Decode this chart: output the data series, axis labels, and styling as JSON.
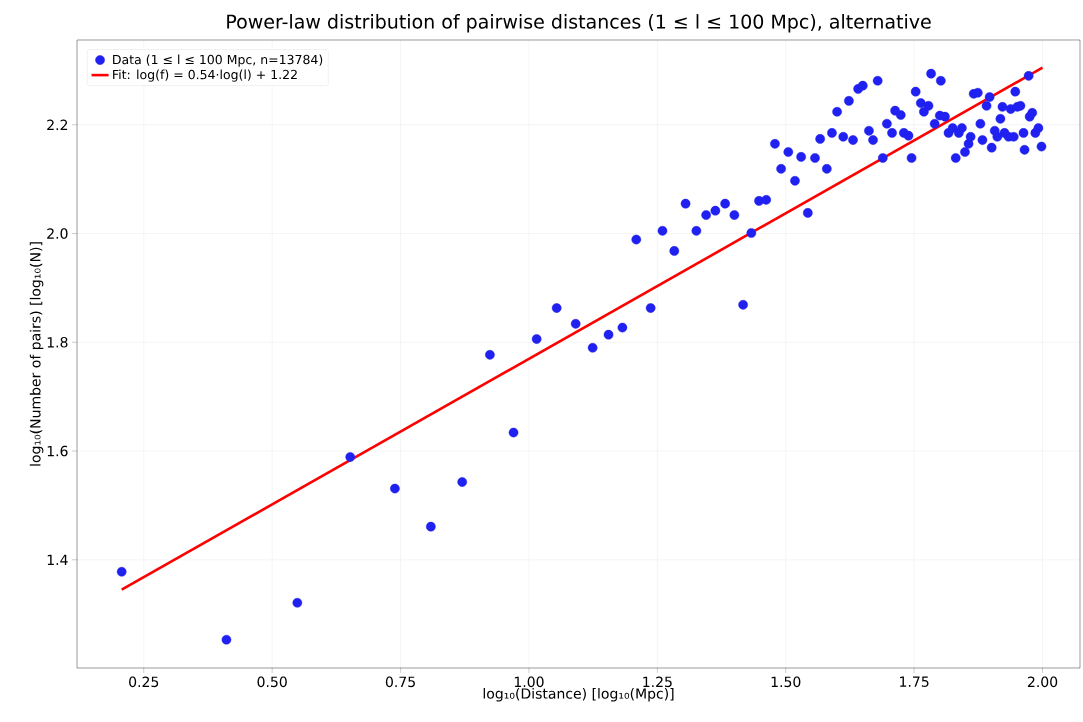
{
  "chart_data": {
    "type": "scatter",
    "title": "Power-law distribution of pairwise distances (1 ≤ l ≤ 100 Mpc), alternative",
    "xlabel": "log₁₀(Distance) [log₁₀(Mpc)]",
    "ylabel": "log₁₀(Number of pairs) [log₁₀(N)]",
    "xlim": [
      0.12,
      2.073
    ],
    "ylim": [
      1.201,
      2.356
    ],
    "xticks": [
      {
        "value": 0.25,
        "label": "0.25"
      },
      {
        "value": 0.5,
        "label": "0.50"
      },
      {
        "value": 0.75,
        "label": "0.75"
      },
      {
        "value": 1.0,
        "label": "1.00"
      },
      {
        "value": 1.25,
        "label": "1.25"
      },
      {
        "value": 1.5,
        "label": "1.50"
      },
      {
        "value": 1.75,
        "label": "1.75"
      },
      {
        "value": 2.0,
        "label": "2.00"
      }
    ],
    "yticks": [
      {
        "value": 1.4,
        "label": "1.4"
      },
      {
        "value": 1.6,
        "label": "1.6"
      },
      {
        "value": 1.8,
        "label": "1.8"
      },
      {
        "value": 2.0,
        "label": "2.0"
      },
      {
        "value": 2.2,
        "label": "2.2"
      }
    ],
    "grid": true,
    "legend": "top left",
    "series": [
      {
        "name": "Data (1 ≤ l ≤ 100 Mpc, n=13784)",
        "type": "scatter",
        "marker": "circle",
        "color": "#2020f0",
        "x": [
          0.207,
          0.411,
          0.549,
          0.652,
          0.739,
          0.809,
          0.87,
          0.924,
          0.97,
          1.015,
          1.054,
          1.091,
          1.124,
          1.155,
          1.182,
          1.209,
          1.237,
          1.26,
          1.283,
          1.305,
          1.326,
          1.345,
          1.363,
          1.382,
          1.4,
          1.417,
          1.433,
          1.448,
          1.462,
          1.479,
          1.491,
          1.505,
          1.518,
          1.53,
          1.543,
          1.557,
          1.567,
          1.58,
          1.59,
          1.6,
          1.612,
          1.623,
          1.631,
          1.641,
          1.65,
          1.662,
          1.67,
          1.679,
          1.689,
          1.697,
          1.707,
          1.713,
          1.724,
          1.73,
          1.739,
          1.745,
          1.753,
          1.763,
          1.769,
          1.778,
          1.783,
          1.79,
          1.8,
          1.802,
          1.81,
          1.817,
          1.825,
          1.831,
          1.837,
          1.843,
          1.849,
          1.856,
          1.86,
          1.866,
          1.874,
          1.879,
          1.883,
          1.891,
          1.897,
          1.901,
          1.907,
          1.912,
          1.918,
          1.922,
          1.926,
          1.934,
          1.938,
          1.944,
          1.947,
          1.951,
          1.957,
          1.963,
          1.965,
          1.973,
          1.975,
          1.98,
          1.986,
          1.992,
          1.998
        ],
        "values": [
          1.378,
          1.253,
          1.321,
          1.589,
          1.531,
          1.461,
          1.543,
          1.777,
          1.634,
          1.806,
          1.863,
          1.834,
          1.79,
          1.814,
          1.827,
          1.989,
          1.863,
          2.005,
          1.968,
          2.055,
          2.005,
          2.034,
          2.042,
          2.055,
          2.034,
          1.869,
          2.001,
          2.06,
          2.062,
          2.165,
          2.119,
          2.15,
          2.097,
          2.141,
          2.038,
          2.139,
          2.174,
          2.119,
          2.185,
          2.224,
          2.178,
          2.244,
          2.172,
          2.266,
          2.272,
          2.189,
          2.172,
          2.281,
          2.139,
          2.202,
          2.185,
          2.226,
          2.218,
          2.185,
          2.18,
          2.139,
          2.261,
          2.24,
          2.224,
          2.235,
          2.294,
          2.202,
          2.217,
          2.281,
          2.215,
          2.185,
          2.194,
          2.139,
          2.185,
          2.194,
          2.15,
          2.165,
          2.178,
          2.257,
          2.259,
          2.202,
          2.172,
          2.235,
          2.251,
          2.158,
          2.189,
          2.178,
          2.211,
          2.233,
          2.185,
          2.178,
          2.229,
          2.178,
          2.261,
          2.233,
          2.235,
          2.185,
          2.154,
          2.29,
          2.215,
          2.222,
          2.185,
          2.194,
          2.16
        ]
      },
      {
        "name": "Fit: log(f) = 0.54·log(l) + 1.22",
        "type": "line",
        "marker": "none",
        "line_style": "solid",
        "color": "#ff0000",
        "x": [
          0.207,
          2.0
        ],
        "values": [
          1.345,
          2.305
        ]
      }
    ]
  }
}
